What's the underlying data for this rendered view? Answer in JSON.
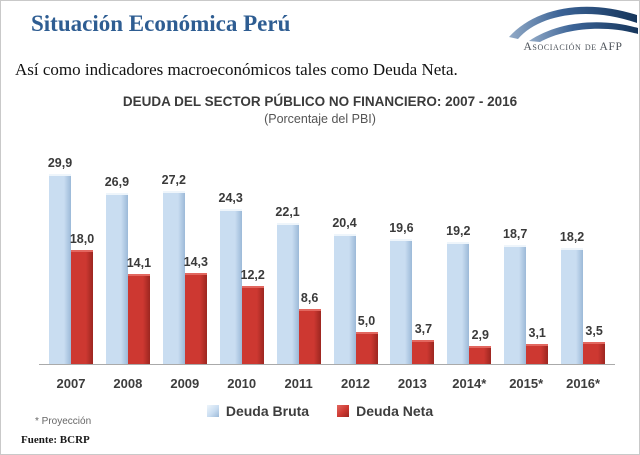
{
  "header": {
    "title": "Situación Económica Perú",
    "logo_text": "Asociación de AFP"
  },
  "intro_text": "Así como indicadores macroeconómicos tales como Deuda Neta.",
  "chart_data": {
    "type": "bar",
    "title": "DEUDA DEL SECTOR PÚBLICO NO FINANCIERO: 2007 - 2016",
    "subtitle": "(Porcentaje del PBI)",
    "categories": [
      "2007",
      "2008",
      "2009",
      "2010",
      "2011",
      "2012",
      "2013",
      "2014*",
      "2015*",
      "2016*"
    ],
    "series": [
      {
        "name": "Deuda Bruta",
        "color": "#c9ddf1",
        "color_dark": "#9cb9d8",
        "color_light": "#eef5fb",
        "values": [
          29.9,
          26.9,
          27.2,
          24.3,
          22.1,
          20.4,
          19.6,
          19.2,
          18.7,
          18.2
        ]
      },
      {
        "name": "Deuda Neta",
        "color": "#cd3831",
        "color_dark": "#9c2620",
        "color_light": "#e2675f",
        "values": [
          18.0,
          14.1,
          14.3,
          12.2,
          8.6,
          5.0,
          3.7,
          2.9,
          3.1,
          3.5
        ]
      }
    ],
    "value_labels": true,
    "value_label_format": "comma-decimal",
    "ylim": [
      0,
      32
    ],
    "grid": false,
    "legend_position": "bottom"
  },
  "footnotes": {
    "projection": "* Proyección",
    "source": "Fuente: BCRP"
  },
  "colors": {
    "title_blue": "#2e5d92",
    "axis_gray": "#aaaaaa",
    "text_dark": "#3d3d3d",
    "logo_navy": "#16365c",
    "logo_blue": "#3b6396"
  }
}
